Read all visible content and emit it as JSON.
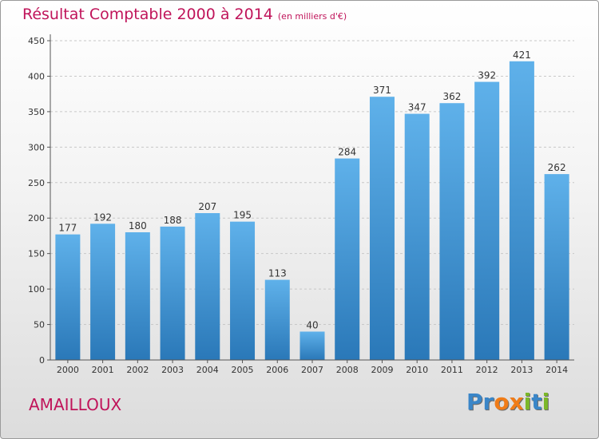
{
  "title": "Résultat Comptable 2000 à 2014",
  "subtitle": "(en milliers d'€)",
  "commune": "AMAILLOUX",
  "logo": {
    "letters": [
      "P",
      "r",
      "o",
      "x",
      "i",
      "t",
      "i"
    ],
    "colors": [
      "#3a86c8",
      "#3a86c8",
      "#f07c18",
      "#f07c18",
      "#7cb829",
      "#3a86c8",
      "#7cb829"
    ]
  },
  "colors": {
    "accent": "#c0145a",
    "bar_top": "#5fb1ea",
    "bar_bottom": "#2a78b8",
    "axis": "#555555",
    "grid": "#c8c8c8"
  },
  "chart_data": {
    "type": "bar",
    "categories": [
      "2000",
      "2001",
      "2002",
      "2003",
      "2004",
      "2005",
      "2006",
      "2007",
      "2008",
      "2009",
      "2010",
      "2011",
      "2012",
      "2013",
      "2014"
    ],
    "values": [
      177,
      192,
      180,
      188,
      207,
      195,
      113,
      40,
      284,
      371,
      347,
      362,
      392,
      421,
      262
    ],
    "ylim": [
      0,
      450
    ],
    "yticks": [
      0,
      50,
      100,
      150,
      200,
      250,
      300,
      350,
      400,
      450
    ],
    "grid": true,
    "xlabel": "",
    "ylabel": ""
  }
}
